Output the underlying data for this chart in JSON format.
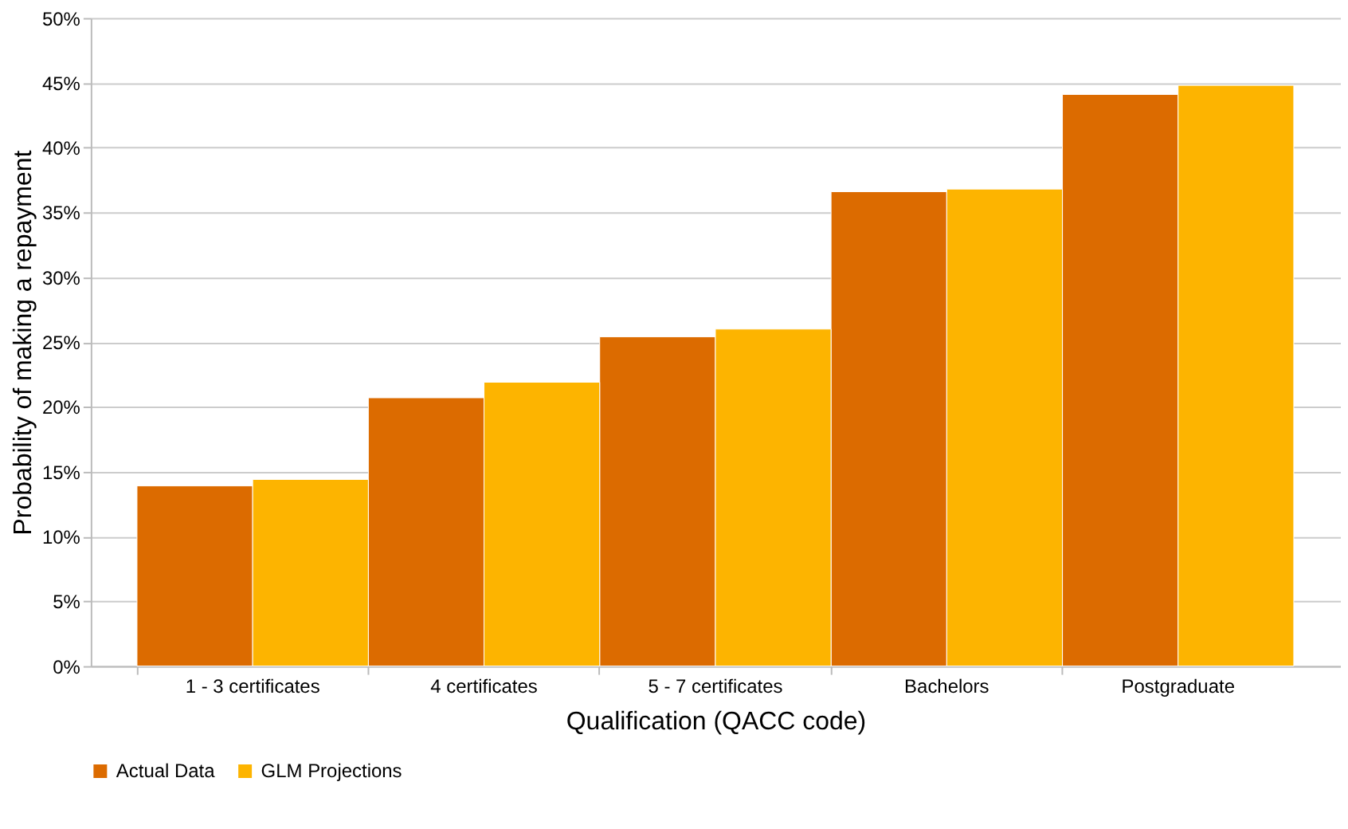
{
  "chart_data": {
    "type": "bar",
    "xlabel": "Qualification (QACC code)",
    "ylabel": "Probability of making a repayment",
    "categories": [
      "1 - 3 certificates",
      "4 certificates",
      "5 - 7 certificates",
      "Bachelors",
      "Postgraduate"
    ],
    "series": [
      {
        "name": "Actual Data",
        "color": "#dc6b00",
        "values": [
          13.9,
          20.7,
          25.4,
          36.6,
          44.1
        ]
      },
      {
        "name": "GLM Projections",
        "color": "#fdb400",
        "values": [
          14.4,
          21.9,
          26.0,
          36.8,
          44.8
        ]
      }
    ],
    "ylim": [
      0,
      50
    ],
    "yticks": [
      {
        "value": 0,
        "label": "0%"
      },
      {
        "value": 5,
        "label": "5%"
      },
      {
        "value": 10,
        "label": "10%"
      },
      {
        "value": 15,
        "label": "15%"
      },
      {
        "value": 20,
        "label": "20%"
      },
      {
        "value": 25,
        "label": "25%"
      },
      {
        "value": 30,
        "label": "30%"
      },
      {
        "value": 35,
        "label": "35%"
      },
      {
        "value": 40,
        "label": "40%"
      },
      {
        "value": 45,
        "label": "45%"
      },
      {
        "value": 50,
        "label": "50%"
      }
    ],
    "grid": "y",
    "legend": "bottom"
  }
}
